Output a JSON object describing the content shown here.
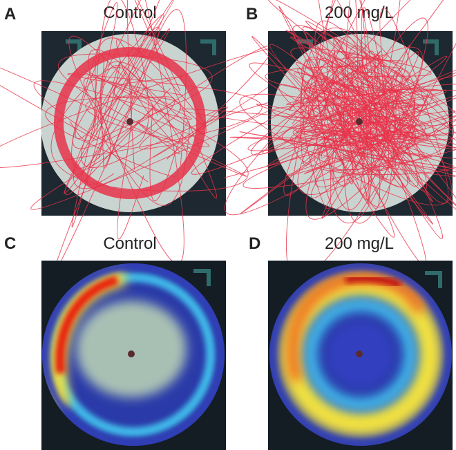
{
  "panels": [
    {
      "letter": "A",
      "title": "Control"
    },
    {
      "letter": "B",
      "title": "200 mg/L"
    },
    {
      "letter": "C",
      "title": "Control"
    },
    {
      "letter": "D",
      "title": "200 mg/L"
    }
  ]
}
